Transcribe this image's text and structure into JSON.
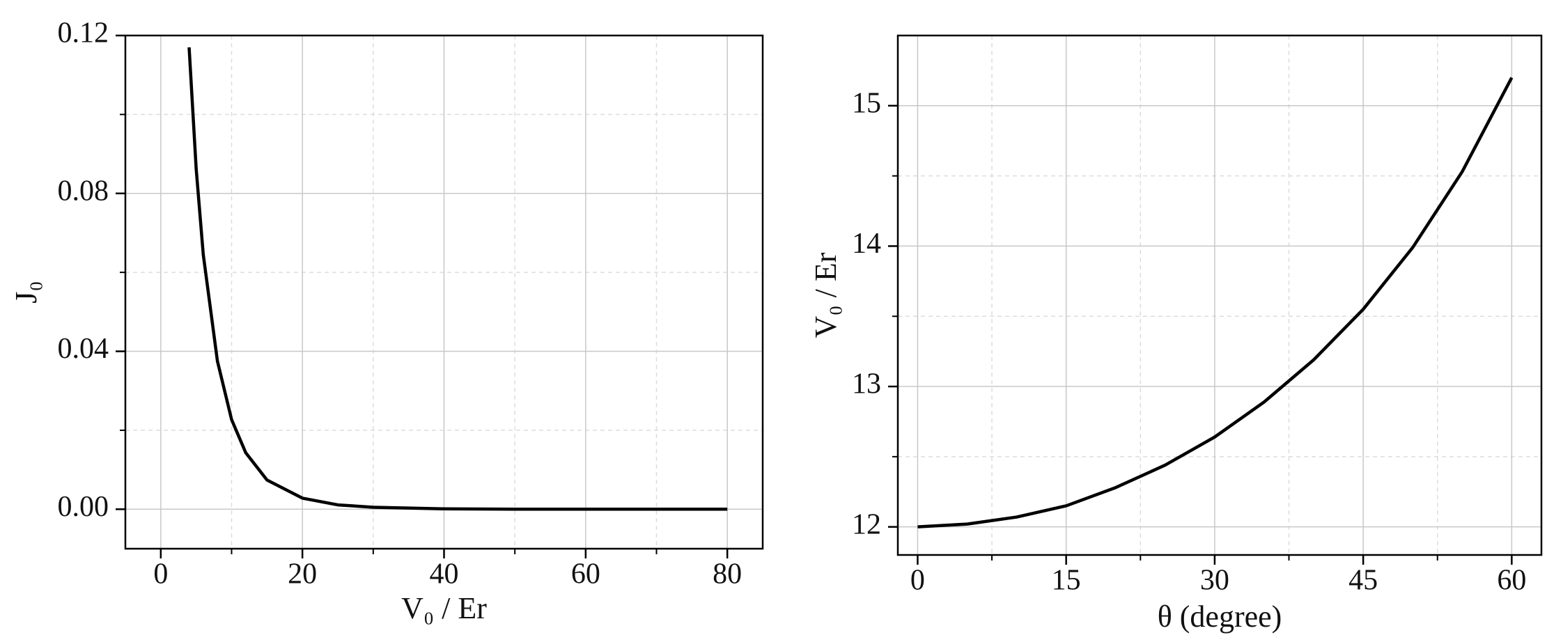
{
  "chart_data": [
    {
      "type": "line",
      "x_label": "V₀ / Er",
      "y_label": "J₀",
      "x": [
        4,
        5,
        6,
        8,
        10,
        12,
        15,
        20,
        25,
        30,
        40,
        50,
        60,
        70,
        80
      ],
      "series": [
        {
          "color": "#000000",
          "values": [
            0.117,
            0.0862,
            0.0645,
            0.0375,
            0.0227,
            0.0143,
            0.0074,
            0.0028,
            0.0011,
            0.0005,
            0.0001,
            0,
            0,
            0,
            0
          ]
        }
      ],
      "xlim": [
        -5,
        85
      ],
      "ylim": [
        -0.01,
        0.12
      ],
      "xticks": [
        0,
        20,
        40,
        60,
        80
      ],
      "xminor": [
        10,
        30,
        50,
        70
      ],
      "yticks": [
        {
          "value": 0,
          "label": "0.00"
        },
        {
          "value": 0.04,
          "label": "0.04"
        },
        {
          "value": 0.08,
          "label": "0.08"
        },
        {
          "value": 0.12,
          "label": "0.12"
        }
      ],
      "yminor": [
        0.02,
        0.06,
        0.1
      ],
      "grid": true
    },
    {
      "type": "line",
      "x_label": "θ (degree)",
      "y_label": "V₀ / Er",
      "x": [
        0,
        5,
        10,
        15,
        20,
        25,
        30,
        35,
        40,
        45,
        50,
        55,
        60
      ],
      "series": [
        {
          "color": "#000000",
          "values": [
            12,
            12.02,
            12.07,
            12.15,
            12.28,
            12.44,
            12.64,
            12.89,
            13.19,
            13.55,
            13.99,
            14.53,
            15.2
          ]
        }
      ],
      "xlim": [
        -2,
        63
      ],
      "ylim": [
        11.8,
        15.5
      ],
      "xticks": [
        0,
        15,
        30,
        45,
        60
      ],
      "xminor": [
        7.5,
        22.5,
        37.5,
        52.5
      ],
      "yticks": [
        12,
        13,
        14,
        15
      ],
      "yminor": [
        12.5,
        13.5,
        14.5
      ],
      "grid": true
    }
  ]
}
